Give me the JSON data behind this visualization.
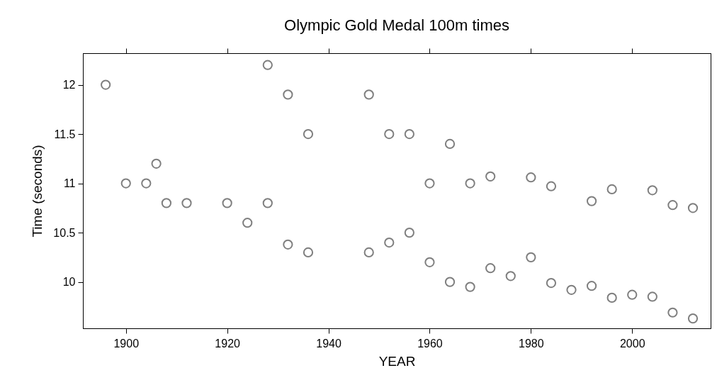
{
  "chart_data": {
    "type": "scatter",
    "title": "Olympic Gold Medal 100m times",
    "xlabel": "YEAR",
    "ylabel": "Time (seconds)",
    "x": [
      1896,
      1900,
      1904,
      1906,
      1908,
      1912,
      1920,
      1924,
      1928,
      1928,
      1932,
      1932,
      1936,
      1936,
      1948,
      1948,
      1952,
      1952,
      1956,
      1956,
      1960,
      1960,
      1964,
      1964,
      1968,
      1968,
      1972,
      1972,
      1976,
      1980,
      1980,
      1984,
      1984,
      1988,
      1992,
      1992,
      1996,
      1996,
      2000,
      2004,
      2004,
      2008,
      2008,
      2012,
      2012
    ],
    "values": [
      12.0,
      11.0,
      11.0,
      11.2,
      10.8,
      10.8,
      10.8,
      10.6,
      12.2,
      10.8,
      11.9,
      10.38,
      11.5,
      10.3,
      11.9,
      10.3,
      11.5,
      10.4,
      11.5,
      10.5,
      11.0,
      10.2,
      11.4,
      10.0,
      11.0,
      9.95,
      11.07,
      10.14,
      10.06,
      11.06,
      10.25,
      10.97,
      9.99,
      9.92,
      10.82,
      9.96,
      10.94,
      9.84,
      9.87,
      10.93,
      9.85,
      10.78,
      9.69,
      10.75,
      9.63
    ],
    "color": "#7f7f7f",
    "marker": "circle",
    "grid": false,
    "xlim": [
      1891.5,
      2015.5
    ],
    "xticks": [
      1900,
      1920,
      1940,
      1960,
      1980,
      2000
    ],
    "ylim": [
      9.53,
      12.32
    ],
    "yticks": [
      10,
      10.5,
      11,
      11.5,
      12
    ]
  }
}
